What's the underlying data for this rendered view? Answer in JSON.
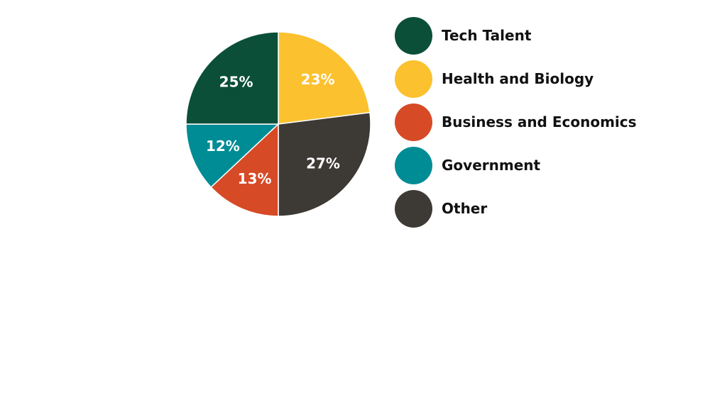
{
  "chart_data": {
    "type": "pie",
    "title": "",
    "slices": [
      {
        "label": "Health and Biology",
        "value": 23,
        "display": "23%",
        "color": "#FBC12E"
      },
      {
        "label": "Other",
        "value": 27,
        "display": "27%",
        "color": "#3D3935"
      },
      {
        "label": "Business and Economics",
        "value": 13,
        "display": "13%",
        "color": "#D64A26"
      },
      {
        "label": "Government",
        "value": 12,
        "display": "12%",
        "color": "#008C95"
      },
      {
        "label": "Tech Talent",
        "value": 25,
        "display": "25%",
        "color": "#0B4F39"
      }
    ],
    "legend": {
      "placement": "right",
      "entries": [
        {
          "label": "Tech Talent",
          "color": "#0B4F39"
        },
        {
          "label": "Health and Biology",
          "color": "#FBC12E"
        },
        {
          "label": "Business and Economics",
          "color": "#D64A26"
        },
        {
          "label": "Government",
          "color": "#008C95"
        },
        {
          "label": "Other",
          "color": "#3D3935"
        }
      ]
    }
  }
}
